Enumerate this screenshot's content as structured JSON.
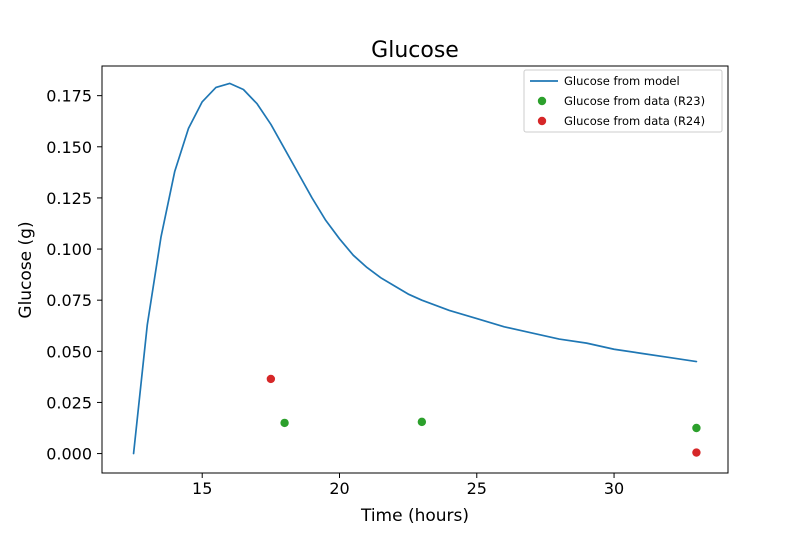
{
  "chart_data": {
    "type": "line",
    "title": "Glucose",
    "xlabel": "Time (hours)",
    "ylabel": "Glucose (g)",
    "xlim": [
      11.35,
      34.15
    ],
    "ylim": [
      -0.0095,
      0.1895
    ],
    "xticks": [
      15,
      20,
      25,
      30
    ],
    "yticks": [
      0.0,
      0.025,
      0.05,
      0.075,
      0.1,
      0.125,
      0.15,
      0.175
    ],
    "xtick_labels": [
      "15",
      "20",
      "25",
      "30"
    ],
    "ytick_labels": [
      "0.000",
      "0.025",
      "0.050",
      "0.075",
      "0.100",
      "0.125",
      "0.150",
      "0.175"
    ],
    "grid": false,
    "legend_position": "top-right",
    "series": [
      {
        "name": "Glucose from model",
        "kind": "line",
        "color": "#1f77b4",
        "x": [
          12.5,
          13.0,
          13.5,
          14.0,
          14.5,
          15.0,
          15.5,
          16.0,
          16.5,
          17.0,
          17.5,
          18.0,
          18.5,
          19.0,
          19.5,
          20.0,
          20.5,
          21.0,
          21.5,
          22.0,
          22.5,
          23.0,
          24.0,
          25.0,
          26.0,
          27.0,
          28.0,
          29.0,
          30.0,
          31.0,
          32.0,
          33.0
        ],
        "y": [
          0.0,
          0.063,
          0.106,
          0.138,
          0.159,
          0.172,
          0.179,
          0.181,
          0.178,
          0.171,
          0.161,
          0.149,
          0.137,
          0.125,
          0.114,
          0.105,
          0.097,
          0.091,
          0.086,
          0.082,
          0.078,
          0.075,
          0.07,
          0.066,
          0.062,
          0.059,
          0.056,
          0.054,
          0.051,
          0.049,
          0.047,
          0.045
        ]
      },
      {
        "name": "Glucose from data (R23)",
        "kind": "scatter",
        "color": "#2ca02c",
        "x": [
          18.0,
          23.0,
          33.0
        ],
        "y": [
          0.015,
          0.0155,
          0.0125
        ]
      },
      {
        "name": "Glucose from data (R24)",
        "kind": "scatter",
        "color": "#d62728",
        "x": [
          17.5,
          33.0
        ],
        "y": [
          0.0365,
          0.0005
        ]
      }
    ]
  }
}
